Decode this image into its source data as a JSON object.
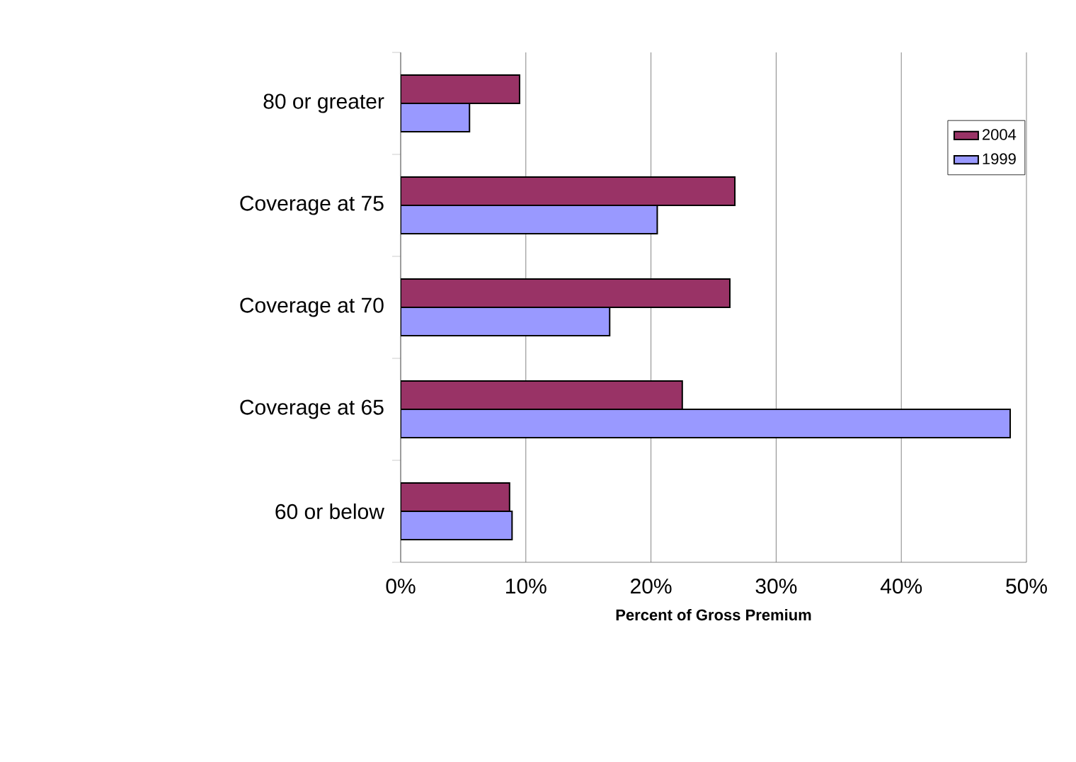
{
  "chart_data": {
    "type": "bar",
    "orientation": "horizontal",
    "xlabel": "Percent of Gross Premium",
    "categories": [
      "80 or greater",
      "Coverage at 75",
      "Coverage at 70",
      "Coverage at 65",
      "60 or below"
    ],
    "series": [
      {
        "name": "2004",
        "color": "#993366",
        "values": [
          9.5,
          26.7,
          26.3,
          22.5,
          8.7
        ]
      },
      {
        "name": "1999",
        "color": "#9999ff",
        "values": [
          5.5,
          20.5,
          16.7,
          48.7,
          8.9
        ]
      }
    ],
    "xlim": [
      0,
      50
    ],
    "xticks": [
      {
        "value": 0,
        "label": "0%"
      },
      {
        "value": 10,
        "label": "10%"
      },
      {
        "value": 20,
        "label": "20%"
      },
      {
        "value": 30,
        "label": "30%"
      },
      {
        "value": 40,
        "label": "40%"
      },
      {
        "value": 50,
        "label": "50%"
      }
    ],
    "grid": "x",
    "legend": "top right"
  }
}
